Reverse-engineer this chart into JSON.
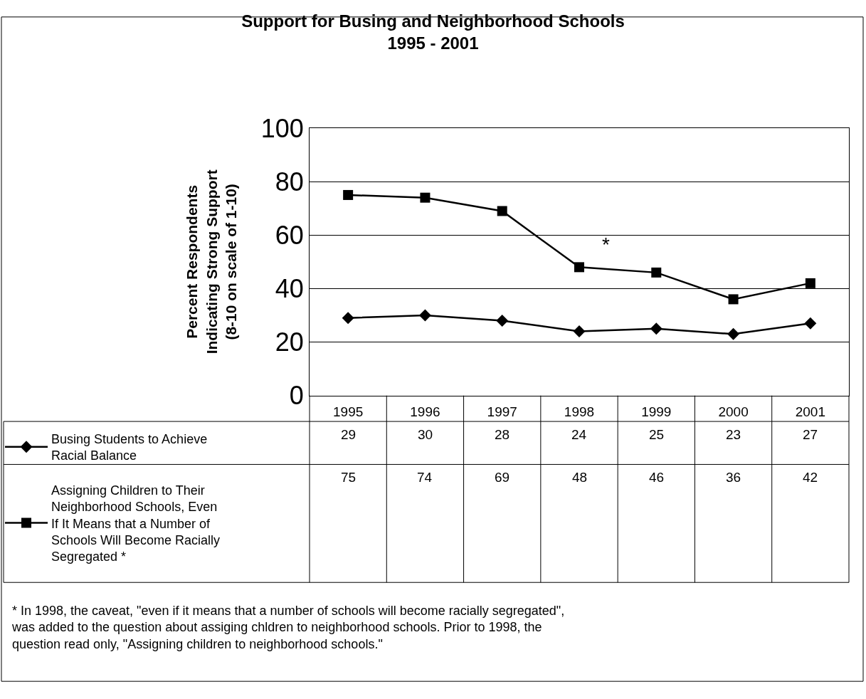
{
  "chart_data": {
    "type": "line",
    "title": "Support for Busing and Neighborhood Schools\n1995 - 2001",
    "ylabel": "Percent Respondents\nIndicating Strong Support\n(8-10 on scale of 1-10)",
    "categories": [
      "1995",
      "1996",
      "1997",
      "1998",
      "1999",
      "2000",
      "2001"
    ],
    "series": [
      {
        "name": "Busing Students to Achieve Racial Balance",
        "color": "#000000",
        "marker": "diamond",
        "values": [
          29,
          30,
          28,
          24,
          25,
          23,
          27
        ]
      },
      {
        "name": "Assigning Children to Their Neighborhood Schools, Even If It Means that a Number of Schools Will Become Racially Segregated *",
        "color": "#000000",
        "marker": "square",
        "values": [
          75,
          74,
          69,
          48,
          46,
          36,
          42
        ]
      }
    ],
    "ylim": [
      0,
      100
    ],
    "yticks": [
      0,
      20,
      40,
      60,
      80,
      100
    ],
    "grid": "y",
    "legend": "bottom left",
    "data_labels": true,
    "line_style": "solid",
    "annotations": [
      "*",
      "* In 1998, the caveat, \"even if it means that a number of schools will become racially segregated\", was added to the question about assiging chldren to neighborhood schools. Prior to 1998, the question read only, \"Assigning children to neighborhood schools.\""
    ]
  }
}
